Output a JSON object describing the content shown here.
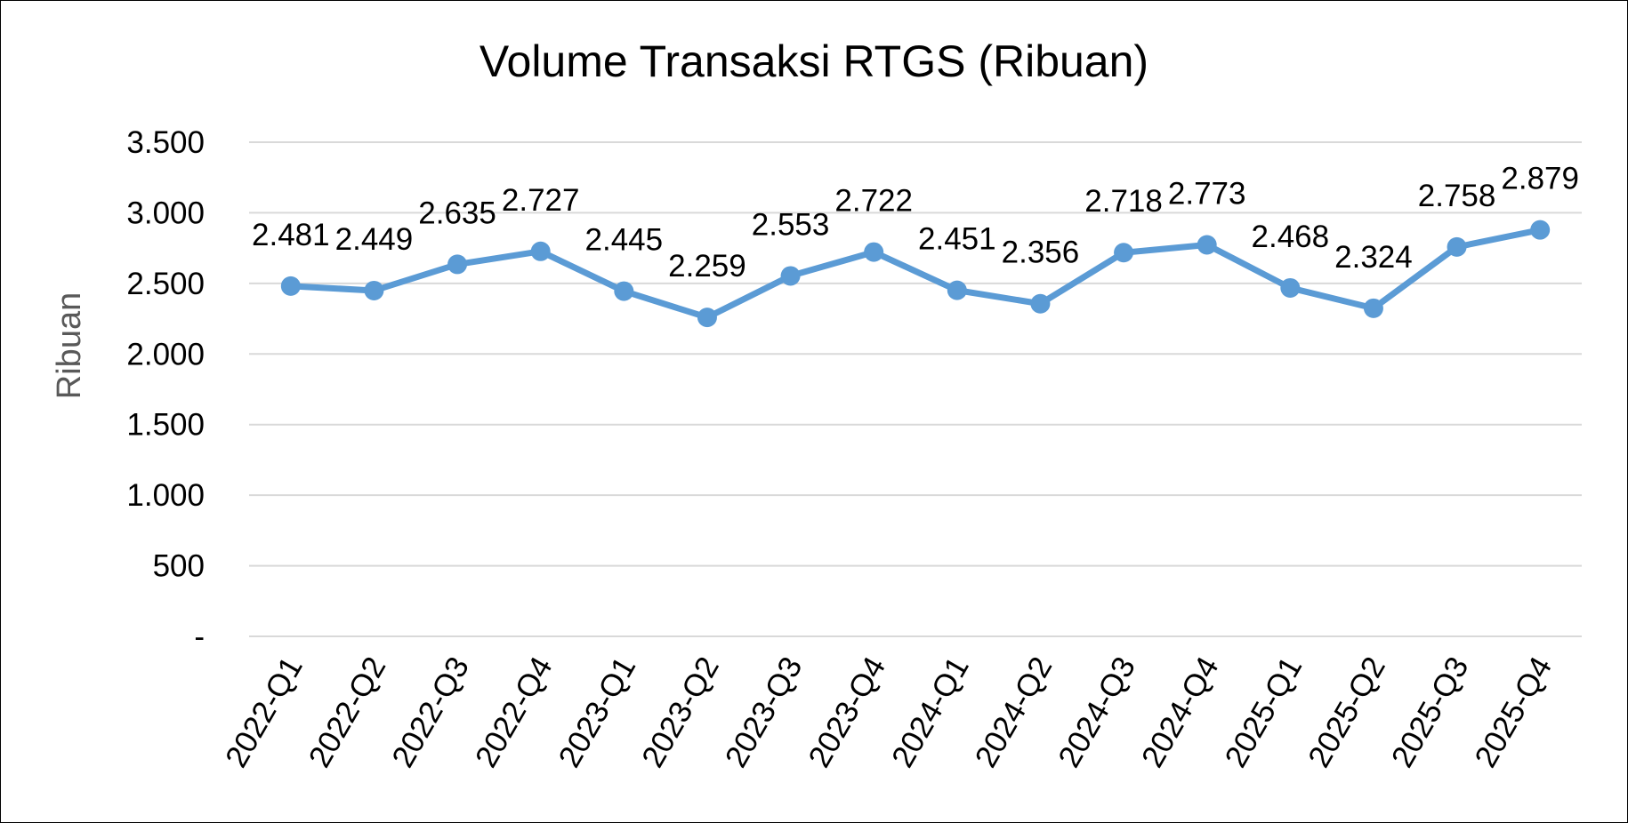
{
  "chart_data": {
    "type": "line",
    "title": "Volume Transaksi RTGS (Ribuan)",
    "xlabel": "",
    "ylabel": "Ribuan",
    "ylim": [
      0,
      3500
    ],
    "ytick_values": [
      0,
      500,
      1000,
      1500,
      2000,
      2500,
      3000,
      3500
    ],
    "ytick_labels": [
      "-",
      "500",
      "1.000",
      "1.500",
      "2.000",
      "2.500",
      "3.000",
      "3.500"
    ],
    "grid": true,
    "legend": "none",
    "categories": [
      "2022-Q1",
      "2022-Q2",
      "2022-Q3",
      "2022-Q4",
      "2023-Q1",
      "2023-Q2",
      "2023-Q3",
      "2023-Q4",
      "2024-Q1",
      "2024-Q2",
      "2024-Q3",
      "2024-Q4",
      "2025-Q1",
      "2025-Q2",
      "2025-Q3",
      "2025-Q4"
    ],
    "series": [
      {
        "values": [
          2481,
          2449,
          2635,
          2727,
          2445,
          2259,
          2553,
          2722,
          2451,
          2356,
          2718,
          2773,
          2468,
          2324,
          2758,
          2879
        ],
        "data_labels": [
          "2.481",
          "2.449",
          "2.635",
          "2.727",
          "2.445",
          "2.259",
          "2.553",
          "2.722",
          "2.451",
          "2.356",
          "2.718",
          "2.773",
          "2.468",
          "2.324",
          "2.758",
          "2.879"
        ],
        "color": "#5B9BD5"
      }
    ],
    "gridline_color": "#D9D9D9"
  }
}
